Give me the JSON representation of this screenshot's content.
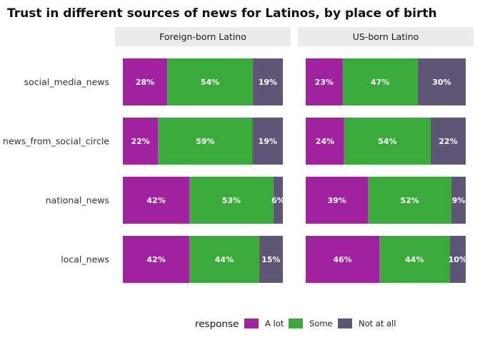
{
  "chart_data": {
    "type": "bar",
    "orientation": "horizontal",
    "stacked": true,
    "title": "Trust in different sources of news for Latinos, by place of birth",
    "categories": [
      "social_media_news",
      "news_from_social_circle",
      "national_news",
      "local_news"
    ],
    "facets": [
      {
        "name": "Foreign-born Latino",
        "series": [
          {
            "name": "A lot",
            "values": [
              28,
              22,
              42,
              42
            ],
            "labels": [
              "28%",
              "22%",
              "42%",
              "42%"
            ]
          },
          {
            "name": "Some",
            "values": [
              54,
              59,
              53,
              44
            ],
            "labels": [
              "54%",
              "59%",
              "53%",
              "44%"
            ]
          },
          {
            "name": "Not at all",
            "values": [
              19,
              19,
              6,
              15
            ],
            "labels": [
              "19%",
              "19%",
              "6%",
              "15%"
            ]
          }
        ]
      },
      {
        "name": "US-born Latino",
        "series": [
          {
            "name": "A lot",
            "values": [
              23,
              24,
              39,
              46
            ],
            "labels": [
              "23%",
              "24%",
              "39%",
              "46%"
            ]
          },
          {
            "name": "Some",
            "values": [
              47,
              54,
              52,
              44
            ],
            "labels": [
              "47%",
              "54%",
              "52%",
              "44%"
            ]
          },
          {
            "name": "Not at all",
            "values": [
              30,
              22,
              9,
              10
            ],
            "labels": [
              "30%",
              "22%",
              "9%",
              "10%"
            ]
          }
        ]
      }
    ],
    "legend": {
      "title": "response",
      "position": "bottom",
      "items": [
        {
          "name": "A lot",
          "color": "#a0229e"
        },
        {
          "name": "Some",
          "color": "#3aab3a"
        },
        {
          "name": "Not at all",
          "color": "#5f5677"
        }
      ]
    },
    "grid": false
  }
}
